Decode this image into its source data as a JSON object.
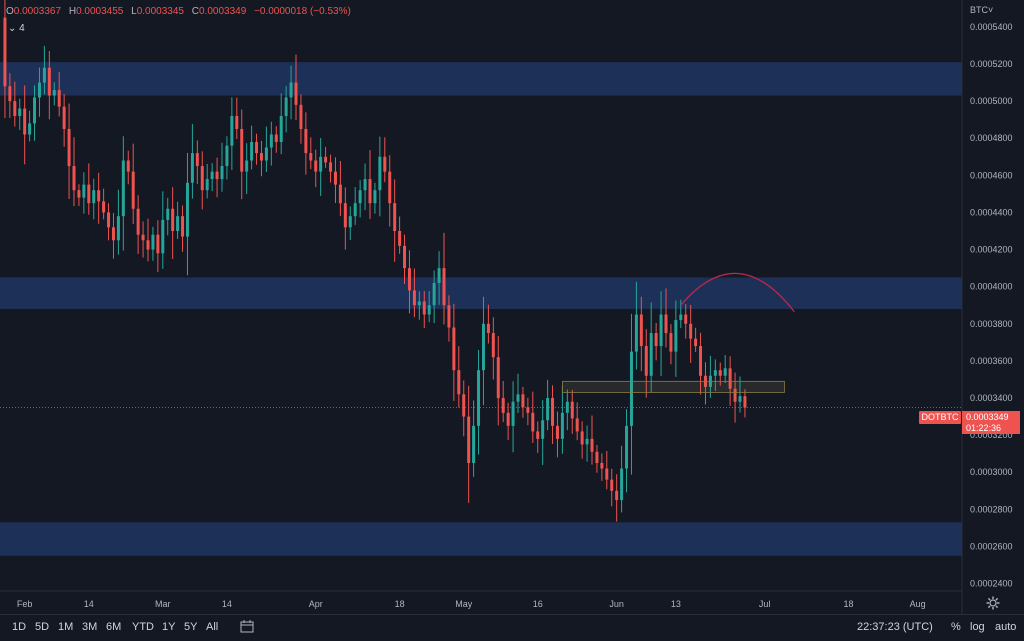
{
  "legend": {
    "o_label": "O",
    "o_value": "0.0003367",
    "h_label": "H",
    "h_value": "0.0003455",
    "l_label": "L",
    "l_value": "0.0003345",
    "c_label": "C",
    "c_value": "0.0003349",
    "change": "−0.0000018 (−0.53%)"
  },
  "badge": "4",
  "currency_label": "BTC",
  "symbol": "DOTBTC",
  "last_price": "0.0003349",
  "countdown": "01:22:36",
  "colors": {
    "up": "#26a69a",
    "down": "#ef5350",
    "zone": "#1e3560",
    "background": "#141823",
    "arc": "#c2264b"
  },
  "toolbar": {
    "timeframes": [
      "1D",
      "5D",
      "1M",
      "3M",
      "6M",
      "YTD",
      "1Y",
      "5Y",
      "All"
    ],
    "clock": "22:37:23 (UTC)",
    "percent_label": "%",
    "log_label": "log",
    "auto_label": "auto"
  },
  "icons": {
    "calendar": "calendar-range-icon",
    "settings": "gear-icon",
    "dropdown": "chevron-down-icon"
  },
  "chart_data": {
    "type": "candlestick",
    "y_ticks": [
      "0.0005400",
      "0.0005200",
      "0.0005000",
      "0.0004800",
      "0.0004600",
      "0.0004400",
      "0.0004200",
      "0.0004000",
      "0.0003800",
      "0.0003600",
      "0.0003400",
      "0.0003200",
      "0.0003000",
      "0.0002800",
      "0.0002600",
      "0.0002400"
    ],
    "y_tick_values": [
      0.00054,
      0.00052,
      0.0005,
      0.00048,
      0.00046,
      0.00044,
      0.00042,
      0.0004,
      0.00038,
      0.00036,
      0.00034,
      0.00032,
      0.0003,
      0.00028,
      0.00026,
      0.00024
    ],
    "x_ticks": [
      {
        "label": "Feb",
        "day": 0
      },
      {
        "label": "14",
        "day": 13
      },
      {
        "label": "Mar",
        "day": 28
      },
      {
        "label": "14",
        "day": 41
      },
      {
        "label": "Apr",
        "day": 59
      },
      {
        "label": "18",
        "day": 76
      },
      {
        "label": "May",
        "day": 89
      },
      {
        "label": "16",
        "day": 104
      },
      {
        "label": "Jun",
        "day": 120
      },
      {
        "label": "13",
        "day": 132
      },
      {
        "label": "Jul",
        "day": 150
      },
      {
        "label": "18",
        "day": 167
      },
      {
        "label": "Aug",
        "day": 181
      }
    ],
    "day_range": [
      -5,
      190
    ],
    "ylim": [
      0.000236,
      0.0005545
    ],
    "zones": [
      {
        "low": 0.000503,
        "high": 0.000521
      },
      {
        "low": 0.000388,
        "high": 0.000405
      },
      {
        "low": 0.000255,
        "high": 0.000273
      }
    ],
    "consolidation_box": {
      "start_day": 109,
      "end_day": 154,
      "low": 0.000343,
      "high": 0.000349
    },
    "arc": {
      "start_day": 133,
      "end_day": 156,
      "base": 0.00039,
      "peak": 0.000408
    },
    "closes": [
      0.000508,
      0.0005,
      0.000492,
      0.000496,
      0.000482,
      0.000488,
      0.000502,
      0.00051,
      0.000518,
      0.000503,
      0.000506,
      0.000497,
      0.000485,
      0.000465,
      0.000452,
      0.000448,
      0.000455,
      0.000445,
      0.000452,
      0.000446,
      0.00044,
      0.000432,
      0.000425,
      0.000438,
      0.000468,
      0.000462,
      0.000442,
      0.000428,
      0.000425,
      0.00042,
      0.000428,
      0.000418,
      0.000436,
      0.000442,
      0.00043,
      0.000438,
      0.000427,
      0.000456,
      0.000472,
      0.000465,
      0.000452,
      0.000458,
      0.000462,
      0.000458,
      0.000465,
      0.000476,
      0.000492,
      0.000485,
      0.000462,
      0.000468,
      0.000478,
      0.000472,
      0.000468,
      0.000475,
      0.000482,
      0.000478,
      0.000492,
      0.000502,
      0.00051,
      0.000498,
      0.000485,
      0.000472,
      0.000468,
      0.000462,
      0.00047,
      0.000467,
      0.000462,
      0.000455,
      0.000445,
      0.000432,
      0.000438,
      0.000445,
      0.000452,
      0.000458,
      0.000445,
      0.000452,
      0.00047,
      0.000462,
      0.000445,
      0.00043,
      0.000422,
      0.00041,
      0.000398,
      0.00039,
      0.000392,
      0.000385,
      0.00039,
      0.000402,
      0.00041,
      0.00039,
      0.000378,
      0.000355,
      0.000342,
      0.00033,
      0.000305,
      0.000325,
      0.000355,
      0.00038,
      0.000375,
      0.000362,
      0.00034,
      0.000332,
      0.000325,
      0.000338,
      0.000342,
      0.000335,
      0.000332,
      0.000322,
      0.000318,
      0.000328,
      0.00034,
      0.000325,
      0.000318,
      0.000332,
      0.000338,
      0.000329,
      0.000322,
      0.000315,
      0.000318,
      0.000311,
      0.000305,
      0.000302,
      0.000296,
      0.00029,
      0.000285,
      0.000302,
      0.000325,
      0.000365,
      0.000385,
      0.000368,
      0.000352,
      0.000375,
      0.000368,
      0.000385,
      0.000375,
      0.000365,
      0.000382,
      0.000385,
      0.00038,
      0.000372,
      0.000368,
      0.000352,
      0.000346,
      0.000352,
      0.000355,
      0.000352,
      0.000356,
      0.000345,
      0.000338,
      0.000341,
      0.0003349
    ]
  }
}
